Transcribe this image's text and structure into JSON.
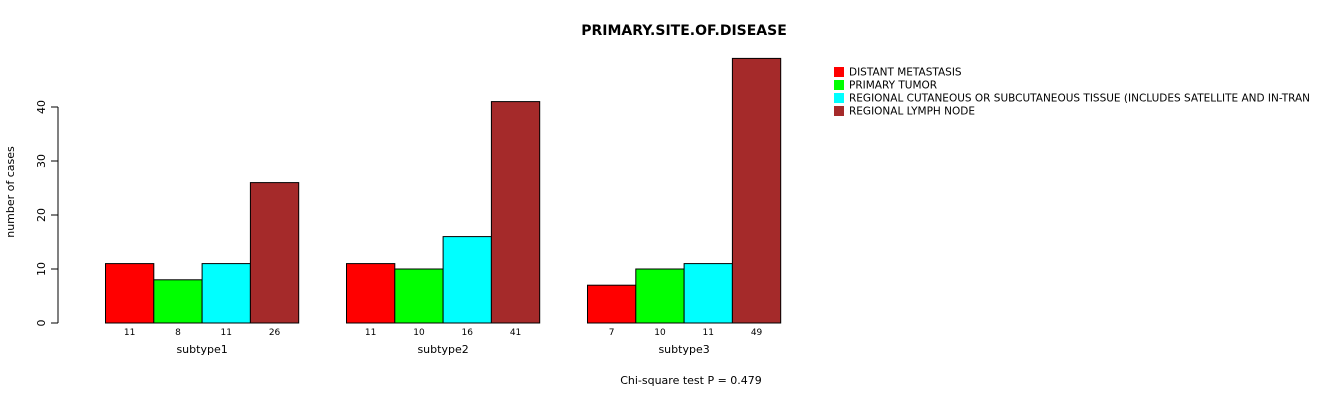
{
  "chart_data": {
    "type": "bar",
    "title": "PRIMARY.SITE.OF.DISEASE",
    "xlabel": "",
    "ylabel": "number of cases",
    "ylim": [
      0,
      50
    ],
    "yticks": [
      0,
      10,
      20,
      30,
      40
    ],
    "categories": [
      "subtype1",
      "subtype2",
      "subtype3"
    ],
    "series": [
      {
        "name": "DISTANT METASTASIS",
        "color": "#FF0000",
        "values": [
          11,
          11,
          7
        ]
      },
      {
        "name": "PRIMARY TUMOR",
        "color": "#00FF00",
        "values": [
          8,
          10,
          10
        ]
      },
      {
        "name": "REGIONAL CUTANEOUS OR SUBCUTANEOUS TISSUE (INCLUDES SATELLITE AND IN-TRANSIT METASTASIS)",
        "color": "#00FFFF",
        "values": [
          11,
          16,
          11
        ]
      },
      {
        "name": "REGIONAL LYMPH NODE",
        "color": "#A52A2A",
        "values": [
          26,
          41,
          49
        ]
      }
    ],
    "legend_position": "top-right",
    "footnote": "Chi-square test P = 0.479"
  }
}
